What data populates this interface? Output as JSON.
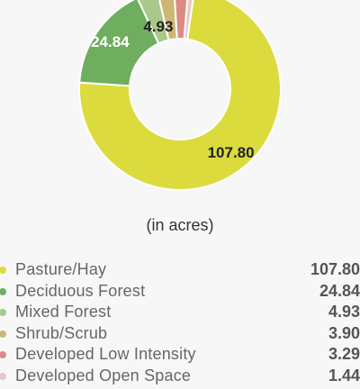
{
  "unit_note": "(in acres)",
  "chart_data": {
    "type": "pie",
    "style": "donut",
    "legend_placement": "bottom",
    "slices": [
      {
        "name": "Pasture/Hay",
        "value": 107.8,
        "label": "107.80",
        "color": "#dbdb3e"
      },
      {
        "name": "Deciduous Forest",
        "value": 24.84,
        "label": "24.84",
        "color": "#6fae5f"
      },
      {
        "name": "Mixed Forest",
        "value": 4.93,
        "label": "4.93",
        "color": "#a8c98a"
      },
      {
        "name": "Shrub/Scrub",
        "value": 3.9,
        "label": "3.90",
        "color": "#ccb874"
      },
      {
        "name": "Developed Low Intensity",
        "value": 3.29,
        "label": "3.29",
        "color": "#db8b83"
      },
      {
        "name": "Developed Open Space",
        "value": 1.44,
        "label": "1.44",
        "color": "#e8c7c9"
      }
    ],
    "slice_labels_shown": [
      "107.80",
      "24.84",
      "4.93"
    ]
  }
}
